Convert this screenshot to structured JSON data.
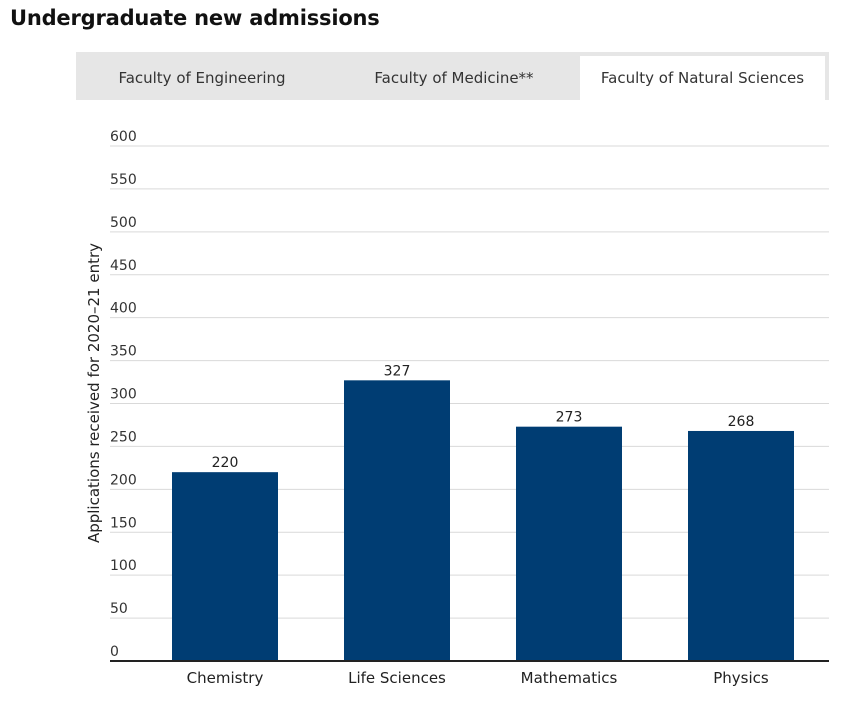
{
  "page": {
    "title": "Undergraduate new admissions"
  },
  "tabs": [
    {
      "label": "Faculty of Engineering",
      "active": false
    },
    {
      "label": "Faculty of Medicine**",
      "active": false
    },
    {
      "label": "Faculty of Natural Sciences",
      "active": true
    }
  ],
  "colors": {
    "bar": "#003d73",
    "grid": "#d9d9d9",
    "axis": "#222222",
    "tab_bg": "#e6e6e6"
  },
  "chart_data": {
    "type": "bar",
    "title": "",
    "xlabel": "",
    "ylabel": "Applications received for 2020–21 entry",
    "categories": [
      "Chemistry",
      "Life Sciences",
      "Mathematics",
      "Physics"
    ],
    "values": [
      220,
      327,
      273,
      268
    ],
    "data_labels": [
      "220",
      "327",
      "273",
      "268"
    ],
    "ylim": [
      0,
      600
    ],
    "yticks": [
      0,
      50,
      100,
      150,
      200,
      250,
      300,
      350,
      400,
      450,
      500,
      550,
      600
    ],
    "grid": true,
    "legend": "none"
  }
}
